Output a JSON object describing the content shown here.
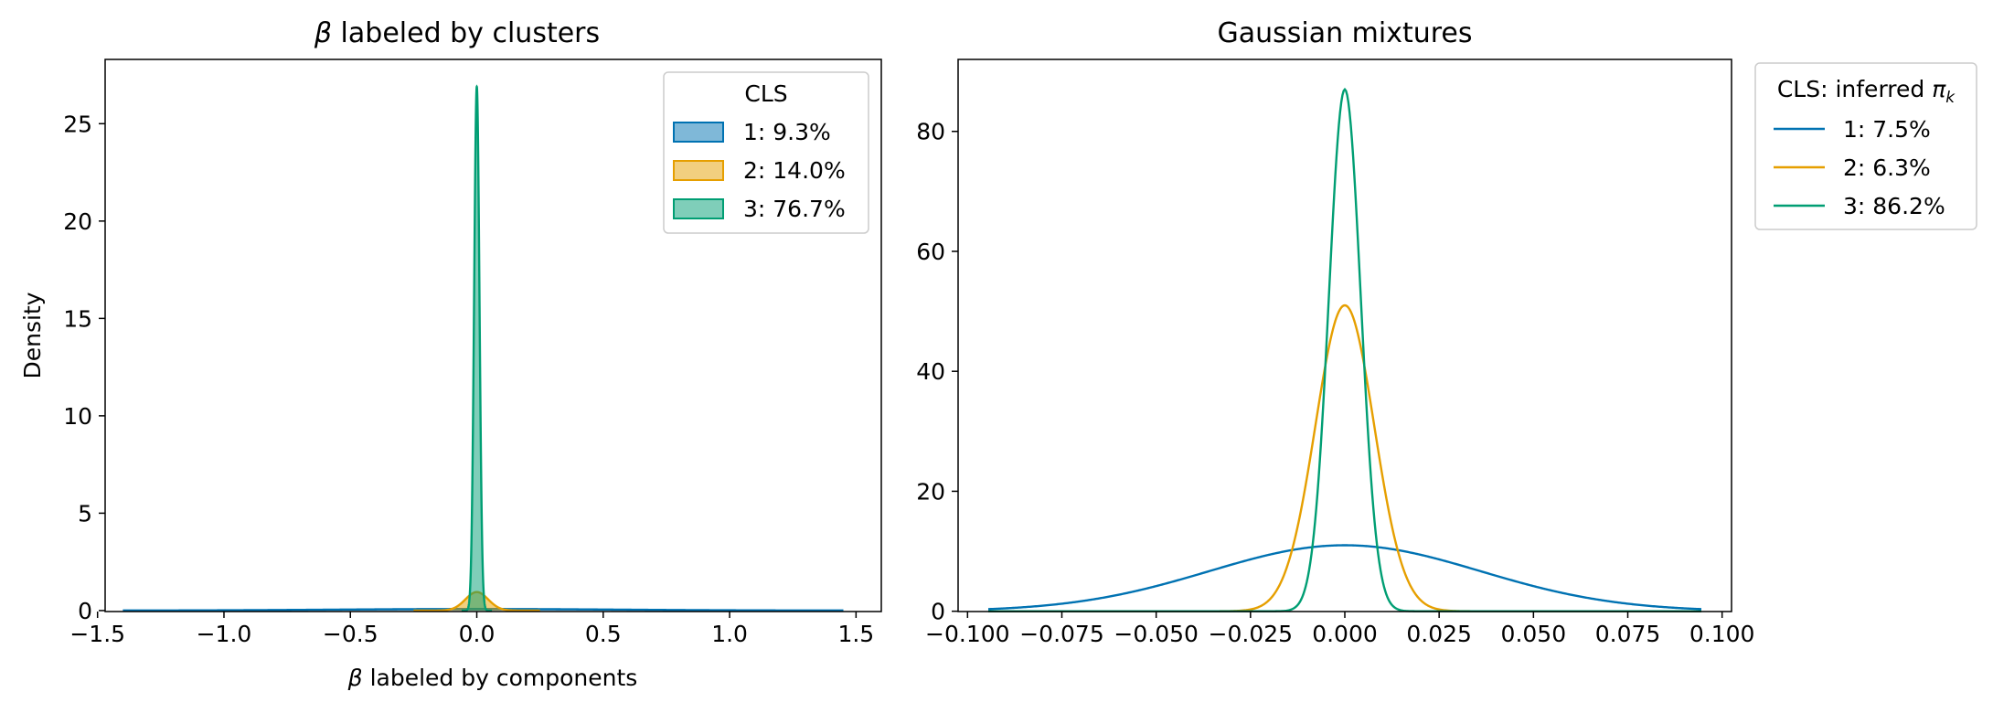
{
  "chart_data": [
    {
      "type": "area",
      "title_symbol": "β",
      "title_text": " labeled by clusters",
      "xlabel_symbol": "β",
      "xlabel_text": " labeled by components",
      "ylabel": "Density",
      "xlim": [
        -1.47,
        1.6
      ],
      "ylim": [
        -0.05,
        28.3
      ],
      "xticks": [
        -1.5,
        -1.0,
        -0.5,
        0.0,
        0.5,
        1.0,
        1.5
      ],
      "xtick_labels": [
        "−1.5",
        "−1.0",
        "−0.5",
        "0.0",
        "0.5",
        "1.0",
        "1.5"
      ],
      "yticks": [
        0,
        5,
        10,
        15,
        20,
        25
      ],
      "ytick_labels": [
        "0",
        "5",
        "10",
        "15",
        "20",
        "25"
      ],
      "legend": {
        "title": "CLS",
        "placement": "top-right",
        "entries": [
          "1: 9.3%",
          "2: 14.0%",
          "3: 76.7%"
        ]
      },
      "series": [
        {
          "name": "1: 9.3%",
          "color": "#0072B2",
          "peak": 0.08,
          "sigma": 0.55,
          "x_range": [
            -1.4,
            1.45
          ]
        },
        {
          "name": "2: 14.0%",
          "color": "#E69F00",
          "peak": 0.95,
          "sigma": 0.045,
          "x_range": [
            -0.25,
            0.25
          ]
        },
        {
          "name": "3: 76.7%",
          "color": "#009E73",
          "peak": 26.9,
          "sigma": 0.0105,
          "x_range": [
            -0.06,
            0.06
          ]
        }
      ]
    },
    {
      "type": "line",
      "title": "Gaussian mixtures",
      "xlim": [
        -0.1025,
        0.1025
      ],
      "ylim": [
        -0.05,
        92.0
      ],
      "xticks": [
        -0.1,
        -0.075,
        -0.05,
        -0.025,
        0.0,
        0.025,
        0.05,
        0.075,
        0.1
      ],
      "xtick_labels": [
        "−0.100",
        "−0.075",
        "−0.050",
        "−0.025",
        "0.000",
        "0.025",
        "0.050",
        "0.075",
        "0.100"
      ],
      "yticks": [
        0,
        20,
        40,
        60,
        80
      ],
      "ytick_labels": [
        "0",
        "20",
        "40",
        "60",
        "80"
      ],
      "legend": {
        "title_text": "CLS: inferred ",
        "title_symbol": "π",
        "title_subscript": "k",
        "placement": "outside-right",
        "entries": [
          "1: 7.5%",
          "2: 6.3%",
          "3: 86.2%"
        ]
      },
      "series": [
        {
          "name": "1: 7.5%",
          "color": "#0072B2",
          "peak": 11.0,
          "sigma": 0.036,
          "x_range": [
            -0.0945,
            0.0945
          ]
        },
        {
          "name": "2: 6.3%",
          "color": "#E69F00",
          "peak": 51.0,
          "sigma": 0.0078,
          "x_range": [
            -0.0945,
            0.0945
          ]
        },
        {
          "name": "3: 86.2%",
          "color": "#009E73",
          "peak": 87.0,
          "sigma": 0.0042,
          "x_range": [
            -0.0945,
            0.0945
          ]
        }
      ]
    }
  ]
}
